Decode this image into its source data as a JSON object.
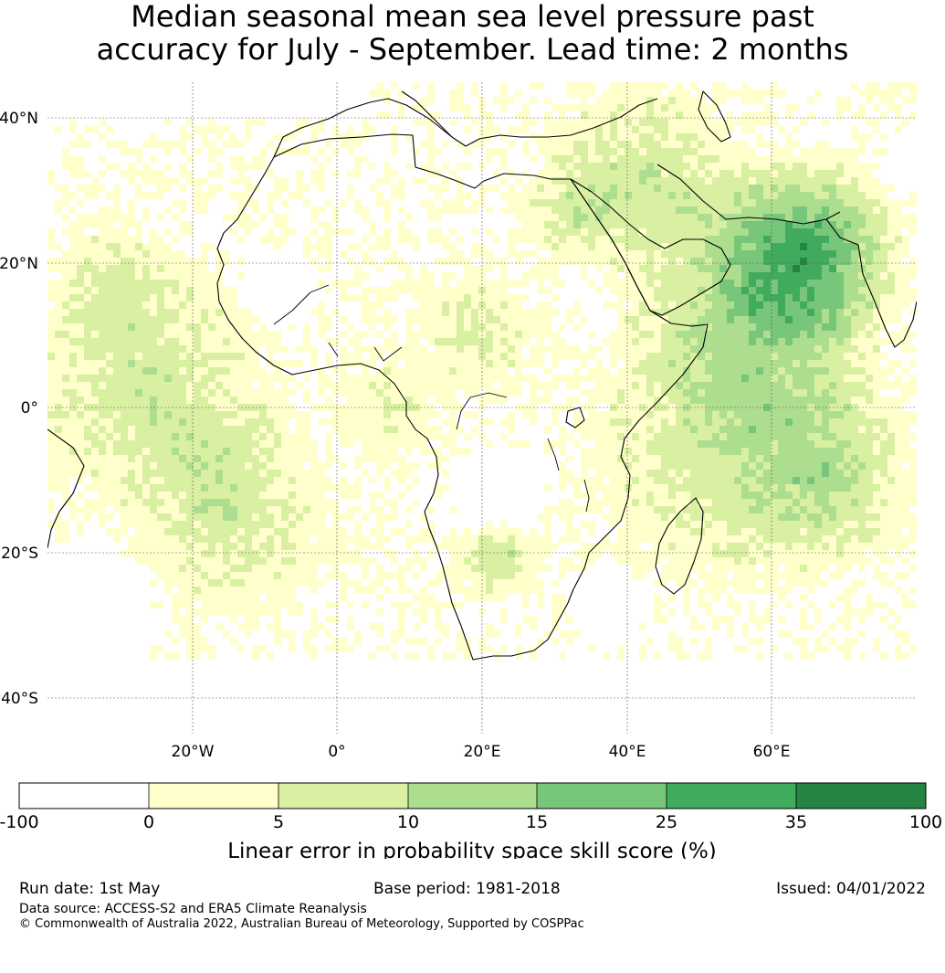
{
  "title": {
    "line1": "Median seasonal mean sea level pressure past",
    "line2": "accuracy for July - September. Lead time: 2 months"
  },
  "map": {
    "region": "Africa",
    "lat_labels": [
      "40°N",
      "20°N",
      "0°",
      "20°S",
      "40°S"
    ],
    "lat_values": [
      40,
      20,
      0,
      -20,
      -40
    ],
    "lon_labels": [
      "20°W",
      "0°",
      "20°E",
      "40°E",
      "60°E"
    ],
    "lon_values": [
      -20,
      0,
      20,
      40,
      60
    ],
    "extent": {
      "lon_min": -40,
      "lon_max": 80,
      "lat_min": -45,
      "lat_max": 45
    }
  },
  "colorbar": {
    "label": "Linear error in probability space skill score (%)",
    "ticks": [
      "-100",
      "0",
      "5",
      "10",
      "15",
      "25",
      "35",
      "100"
    ],
    "colors": [
      "#ffffff",
      "#ffffcc",
      "#d9f0a3",
      "#addd8e",
      "#78c679",
      "#41ab5d",
      "#238443"
    ]
  },
  "footer": {
    "run_date": "Run date: 1st May",
    "base_period": "Base period: 1981-2018",
    "issued": "Issued: 04/01/2022",
    "data_source": "Data source: ACCESS-S2 and ERA5 Climate Reanalysis",
    "copyright": "© Commonwealth of Australia 2022, Australian Bureau of Meteorology, Supported by COSPPac"
  }
}
